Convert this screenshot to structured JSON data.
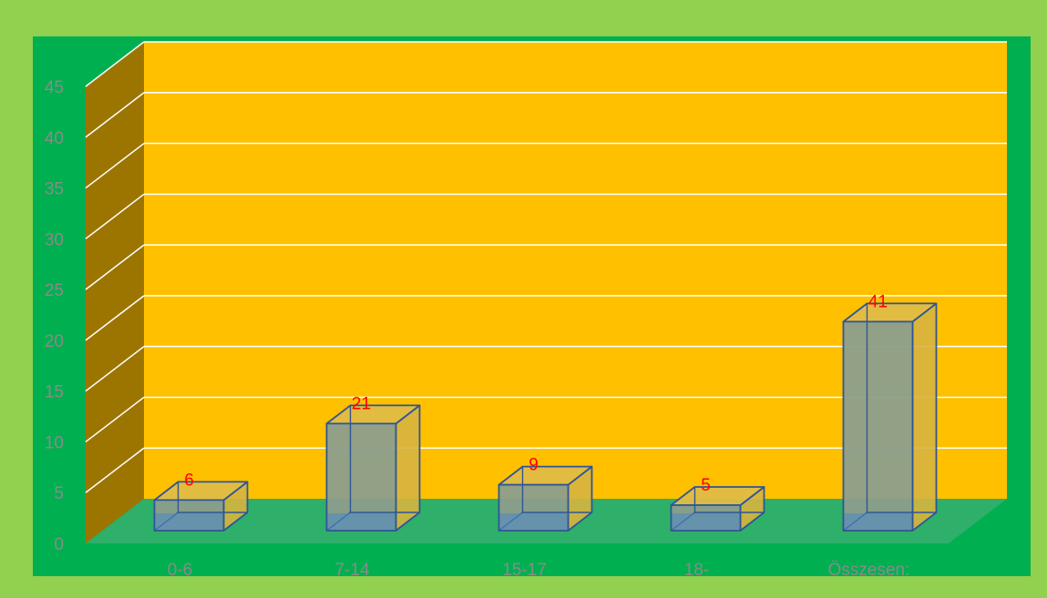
{
  "colors": {
    "outer_border": "#92d050",
    "plot_area_bg": "#00b050",
    "back_wall": "#ffc000",
    "side_wall": "#9c7500",
    "floor": "#2eaf6a",
    "gridline": "#ffffff",
    "bar_front": "#8c9e8c",
    "bar_side": "#d6b440",
    "bar_top": "#e0bc45",
    "bar_edge": "#2f5597",
    "axis_text": "#8a8a8a",
    "data_label": "#ff0000"
  },
  "chart_data": {
    "type": "bar",
    "categories": [
      "0-6",
      "7-14",
      "15-17",
      "18-",
      "Összesen:"
    ],
    "values": [
      6,
      21,
      9,
      5,
      41
    ],
    "data_labels": [
      "6",
      "21",
      "9",
      "5",
      "41"
    ],
    "ylim": [
      0,
      45
    ],
    "y_ticks": [
      "0",
      "5",
      "10",
      "15",
      "20",
      "25",
      "30",
      "35",
      "40",
      "45"
    ],
    "grid": true,
    "title": "",
    "xlabel": "",
    "ylabel": ""
  }
}
